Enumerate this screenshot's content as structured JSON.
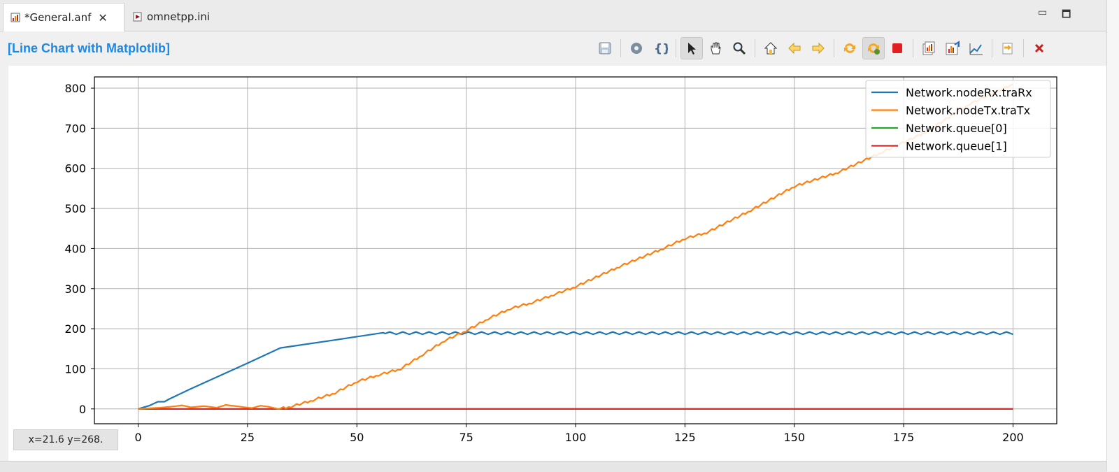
{
  "tabs": [
    {
      "label": "*General.anf",
      "active": true,
      "icon": "chart-file-icon",
      "closable": true
    },
    {
      "label": "omnetpp.ini",
      "active": false,
      "icon": "ini-file-icon"
    }
  ],
  "chart_title": "[Line Chart with Matplotlib]",
  "toolbar": [
    "save-icon",
    "gear-icon",
    "braces-icon",
    "pointer-icon",
    "pan-icon",
    "zoom-icon",
    "home-icon",
    "back-icon",
    "forward-icon",
    "refresh-icon",
    "auto-refresh-icon",
    "stop-icon",
    "copy-chart-icon",
    "export-image-icon",
    "export-data-icon",
    "open-icon",
    "close-chart-icon"
  ],
  "status": "x=21.6 y=268.",
  "colors": {
    "accent": "#1e88e5",
    "series": [
      "#1f77b4",
      "#ff7f0e",
      "#2ca02c",
      "#d62728"
    ]
  },
  "chart_data": {
    "type": "line",
    "title": "",
    "xlabel": "",
    "ylabel": "",
    "xlim": [
      -10,
      210
    ],
    "ylim": [
      -37,
      828
    ],
    "xticks": [
      0,
      25,
      50,
      75,
      100,
      125,
      150,
      175,
      200
    ],
    "yticks": [
      0,
      100,
      200,
      300,
      400,
      500,
      600,
      700,
      800
    ],
    "grid": true,
    "legend_position": "top-right",
    "series": [
      {
        "name": "Network.nodeRx.traRx",
        "color": "#1f77b4",
        "x": [
          0,
          2.5,
          4.5,
          6,
          7,
          12,
          25,
          32.5,
          45,
          56
        ],
        "y": [
          0,
          8,
          18,
          18,
          24,
          50,
          114,
          152,
          172,
          190
        ],
        "oscillate_from": 56,
        "oscillate_to": 200,
        "oscillate_center": 189,
        "oscillate_amp": 3,
        "oscillate_period": 3
      },
      {
        "name": "Network.nodeTx.traTx",
        "color": "#ff7f0e",
        "x": [
          0,
          5,
          8,
          10,
          12,
          15,
          18,
          20,
          23,
          26,
          28,
          30,
          32,
          35,
          40,
          45,
          50,
          55,
          60,
          65,
          70,
          75,
          80,
          85,
          90,
          95,
          100,
          110,
          120,
          125,
          130,
          140,
          150,
          160,
          170,
          180,
          190,
          200
        ],
        "y": [
          0,
          3,
          6,
          9,
          4,
          7,
          3,
          10,
          6,
          2,
          8,
          5,
          0,
          6,
          22,
          40,
          68,
          85,
          100,
          135,
          170,
          195,
          225,
          250,
          265,
          285,
          305,
          355,
          400,
          425,
          440,
          495,
          555,
          590,
          640,
          690,
          760,
          810
        ]
      },
      {
        "name": "Network.queue[0]",
        "color": "#2ca02c",
        "x": [
          0,
          200
        ],
        "y": [
          0,
          0
        ]
      },
      {
        "name": "Network.queue[1]",
        "color": "#d62728",
        "x": [
          0,
          200
        ],
        "y": [
          0,
          0
        ]
      }
    ]
  }
}
